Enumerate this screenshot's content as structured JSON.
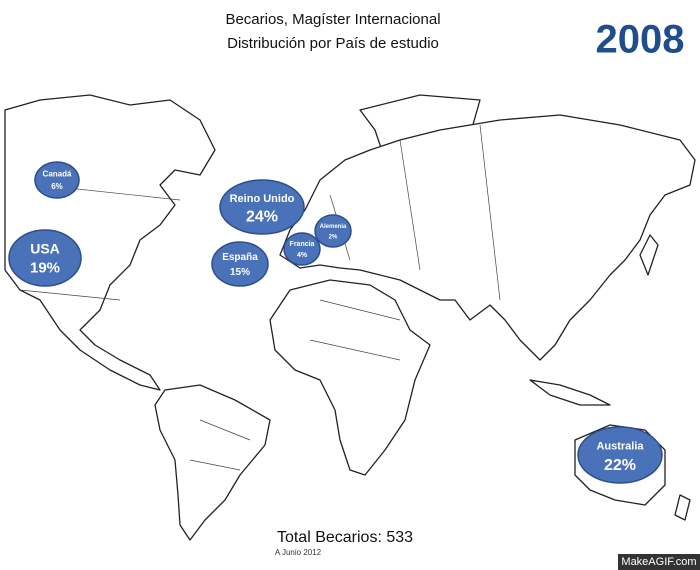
{
  "header": {
    "title_line1": "Becarios, Magíster Internacional",
    "title_line2": "Distribución por País de estudio",
    "year": "2008"
  },
  "bubbles": [
    {
      "name": "Canadá",
      "share": "6%"
    },
    {
      "name": "USA",
      "share": "19%"
    },
    {
      "name": "Reino Unido",
      "share": "24%"
    },
    {
      "name": "España",
      "share": "15%"
    },
    {
      "name": "Francia",
      "share": "4%"
    },
    {
      "name": "Alemenia",
      "share": "2%"
    },
    {
      "name": "Australia",
      "share": "22%"
    }
  ],
  "footer": {
    "total": "Total Becarios: 533",
    "date": "A Junio 2012",
    "watermark": "MakeAGIF.com"
  }
}
